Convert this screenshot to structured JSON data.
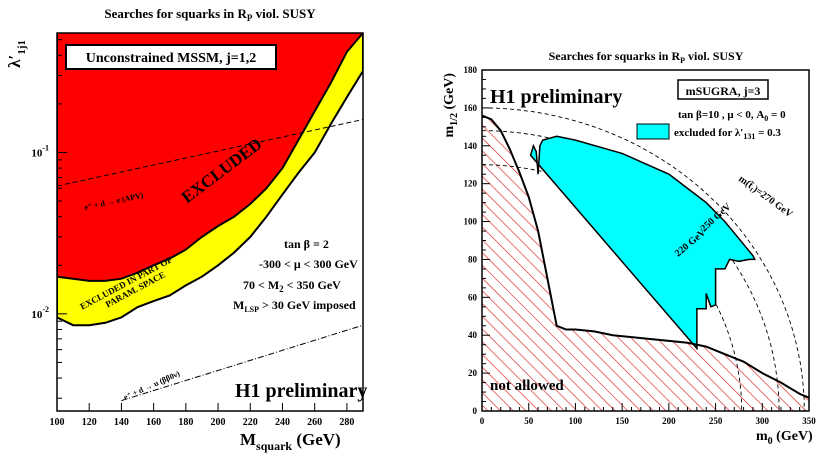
{
  "colors": {
    "excluded_red": "#ff0000",
    "partial_yellow": "#ffff00",
    "excluded_cyan": "#00ffff",
    "hatch_red": "#e03030"
  },
  "chart_data": [
    {
      "type": "area",
      "title_parts": [
        "Searches for squarks in R",
        "P",
        " viol. SUSY"
      ],
      "xlabel_parts": [
        "M",
        "squark",
        " (GeV)"
      ],
      "ylabel_parts": [
        "λ′",
        "1j1"
      ],
      "xlim": [
        100,
        290
      ],
      "ylim_log": [
        0.0025,
        0.55
      ],
      "log_y": true,
      "x_ticks": [
        100,
        120,
        140,
        160,
        180,
        200,
        220,
        240,
        260,
        280
      ],
      "y_ticks": [
        {
          "value": 0.1,
          "base": "10",
          "exp": "-1"
        },
        {
          "value": 0.01,
          "base": "10",
          "exp": "-2"
        }
      ],
      "box_label": "Unconstrained MSSM, j=1,2",
      "preliminary": "H1 preliminary",
      "excluded_label": "EXCLUDED",
      "partial_label_lines": [
        "EXCLUDED IN PART OF",
        "PARAM. SPACE"
      ],
      "params": [
        {
          "main": "tan β = 2"
        },
        {
          "main": "-300 < μ < 300 GeV"
        },
        {
          "main": "70 < M",
          "sub": "2",
          "rest": " < 350 GeV"
        },
        {
          "main": "M",
          "sub": "LSP",
          "rest": " > 30 GeV imposed"
        }
      ],
      "series": [
        {
          "name": "EXCLUDED",
          "kind": "boundary",
          "x": [
            100,
            110,
            120,
            130,
            140,
            150,
            160,
            170,
            180,
            190,
            200,
            210,
            220,
            230,
            240,
            250,
            260,
            270,
            280,
            290
          ],
          "y": [
            0.017,
            0.0165,
            0.016,
            0.016,
            0.0165,
            0.018,
            0.02,
            0.022,
            0.025,
            0.03,
            0.035,
            0.04,
            0.048,
            0.06,
            0.08,
            0.12,
            0.18,
            0.27,
            0.42,
            0.55
          ]
        },
        {
          "name": "EXCLUDED IN PART OF PARAM. SPACE",
          "kind": "boundary",
          "x": [
            100,
            110,
            120,
            130,
            140,
            150,
            160,
            170,
            180,
            190,
            200,
            210,
            220,
            230,
            240,
            250,
            260,
            270,
            280,
            290
          ],
          "y": [
            0.0095,
            0.0085,
            0.0085,
            0.0088,
            0.0095,
            0.011,
            0.012,
            0.013,
            0.015,
            0.017,
            0.02,
            0.024,
            0.03,
            0.04,
            0.055,
            0.075,
            0.1,
            0.15,
            0.22,
            0.32
          ]
        },
        {
          "name": "e⁺ + d → e (APV)",
          "kind": "dashed",
          "x": [
            100,
            290
          ],
          "y": [
            0.062,
            0.16
          ]
        },
        {
          "name": "e⁺ + d → u (ββ0ν)",
          "kind": "dashdot",
          "x": [
            140,
            290
          ],
          "y": [
            0.0029,
            0.0085
          ]
        }
      ],
      "curve_labels": [
        {
          "text": "e⁺ + d → e (APV)"
        },
        {
          "text": "e⁺ + d → u (ββ0ν)"
        }
      ]
    },
    {
      "type": "area",
      "title_parts": [
        "Searches for squarks in R",
        "P",
        " viol. SUSY"
      ],
      "xlabel_parts": [
        "m",
        "0",
        " (GeV)"
      ],
      "ylabel_parts": [
        "m",
        "1/2",
        " (GeV)"
      ],
      "xlim": [
        0,
        350
      ],
      "ylim": [
        0,
        180
      ],
      "x_ticks": [
        0,
        50,
        100,
        150,
        200,
        250,
        300,
        350
      ],
      "y_ticks": [
        0,
        20,
        40,
        60,
        80,
        100,
        120,
        140,
        160,
        180
      ],
      "preliminary": "H1 preliminary",
      "box_label": "mSUGRA, j=3",
      "params_line": {
        "text": "tan β=10 , μ < 0, A",
        "sub": "0",
        "rest": " = 0"
      },
      "legend_entry": {
        "text": "excluded  for λ′",
        "sub": "131",
        "rest": " = 0.3"
      },
      "not_allowed": "not allowed",
      "contour_labels": [
        {
          "text": "m(t̃₁)=270 GeV"
        },
        {
          "text": "250 GeV"
        },
        {
          "text": "220 GeV"
        }
      ],
      "series": [
        {
          "name": "not allowed boundary",
          "x": [
            0,
            10,
            20,
            30,
            40,
            50,
            60,
            70,
            80,
            90,
            100,
            120,
            140,
            160,
            180,
            200,
            220,
            240,
            260,
            280,
            300,
            320,
            340,
            350
          ],
          "y": [
            156,
            154,
            148,
            138,
            126,
            113,
            95,
            70,
            45,
            43,
            43,
            42,
            40,
            39,
            38,
            37,
            36,
            34,
            30,
            26,
            20,
            15,
            9,
            7
          ]
        },
        {
          "name": "excluded for λ′131 = 0.3",
          "x": [
            52,
            55,
            58,
            60,
            62,
            65,
            80,
            100,
            150,
            200,
            240,
            260,
            280,
            290,
            292,
            286,
            275,
            265,
            260,
            250,
            250,
            245,
            240,
            240,
            230,
            230
          ],
          "y": [
            135,
            140,
            137,
            125,
            140,
            143,
            145,
            143,
            136,
            125,
            110,
            100,
            88,
            82,
            80,
            80,
            79,
            80,
            75,
            75,
            56,
            55,
            62,
            54,
            54,
            33
          ]
        }
      ]
    }
  ]
}
